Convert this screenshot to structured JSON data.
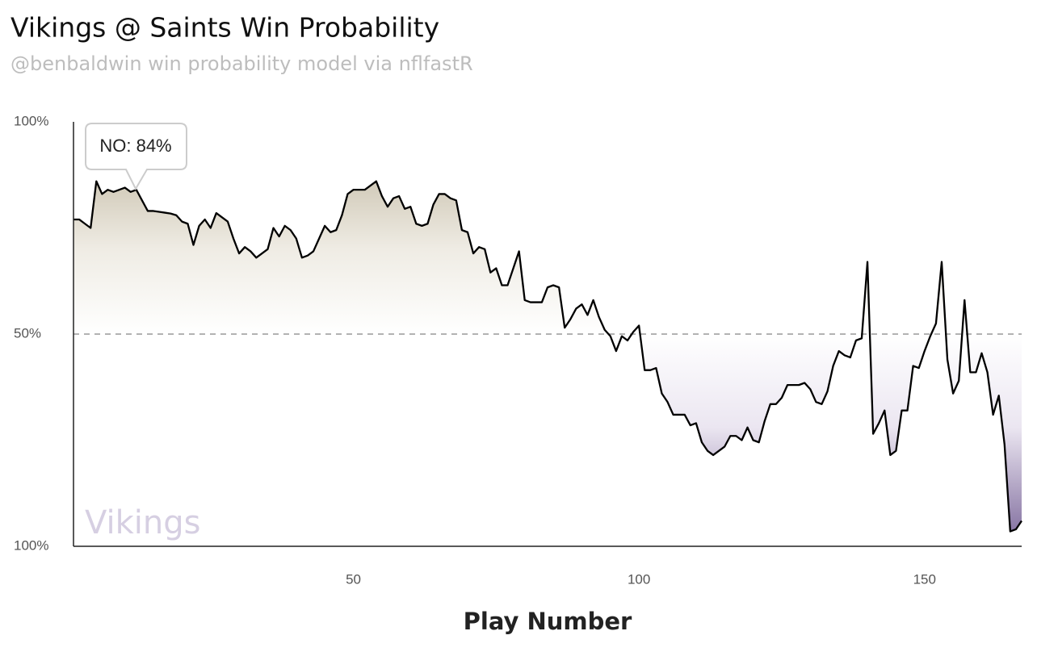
{
  "chart_data": {
    "type": "line",
    "title": "Vikings @ Saints Win Probability",
    "subtitle": "@benbaldwin win probability model via nflfastR",
    "xlabel": "Play Number",
    "annotation": "NO: 84%",
    "team_label": "Vikings",
    "x": [
      1,
      2,
      3,
      4,
      5,
      6,
      7,
      8,
      9,
      10,
      11,
      12,
      13,
      14,
      15,
      16,
      17,
      18,
      19,
      20,
      21,
      22,
      23,
      24,
      25,
      26,
      27,
      28,
      29,
      30,
      31,
      32,
      33,
      34,
      35,
      36,
      37,
      38,
      39,
      40,
      41,
      42,
      43,
      44,
      45,
      46,
      47,
      48,
      49,
      50,
      51,
      52,
      53,
      54,
      55,
      56,
      57,
      58,
      59,
      60,
      61,
      62,
      63,
      64,
      65,
      66,
      67,
      68,
      69,
      70,
      71,
      72,
      73,
      74,
      75,
      76,
      77,
      78,
      79,
      80,
      81,
      82,
      83,
      84,
      85,
      86,
      87,
      88,
      89,
      90,
      91,
      92,
      93,
      94,
      95,
      96,
      97,
      98,
      99,
      100,
      101,
      102,
      103,
      104,
      105,
      106,
      107,
      108,
      109,
      110,
      111,
      112,
      113,
      114,
      115,
      116,
      117,
      118,
      119,
      120,
      121,
      122,
      123,
      124,
      125,
      126,
      127,
      128,
      129,
      130,
      131,
      132,
      133,
      134,
      135,
      136,
      137,
      138,
      139,
      140,
      141,
      142,
      143,
      144,
      145,
      146,
      147,
      148,
      149,
      150,
      151,
      152,
      153,
      154,
      155,
      156,
      157,
      158,
      159,
      160,
      161,
      162,
      163,
      164,
      165,
      166,
      167
    ],
    "series": [
      {
        "name": "NO",
        "color": "#000000",
        "values": [
          77,
          77,
          76,
          75,
          86,
          83,
          84,
          83.5,
          84,
          84.5,
          83.5,
          84,
          81.5,
          79,
          79,
          78.8,
          78.6,
          78.4,
          78,
          76.5,
          76,
          71,
          75.5,
          77,
          75,
          78.5,
          77.5,
          76.5,
          72.5,
          69,
          70.5,
          69.5,
          68,
          69,
          70,
          75,
          73,
          75.5,
          74.5,
          72.5,
          68,
          68.5,
          69.5,
          72.5,
          75.5,
          74,
          74.5,
          78,
          83,
          84,
          84,
          84,
          85,
          86,
          82.5,
          80,
          82,
          82.5,
          79.5,
          80,
          76,
          75.5,
          76,
          80.5,
          83,
          83,
          82,
          81.5,
          74.5,
          74,
          69,
          70.5,
          70,
          64.5,
          65.5,
          61.5,
          61.5,
          65.5,
          69.5,
          58,
          57.5,
          57.5,
          57.5,
          61,
          61.5,
          61,
          51.5,
          53.5,
          56,
          57,
          54.5,
          58,
          54,
          51,
          49.5,
          46,
          49.5,
          48.5,
          50.5,
          52,
          41.5,
          41.5,
          42,
          36,
          34,
          31,
          31,
          31,
          28.5,
          29,
          24.5,
          22.5,
          21.5,
          22.5,
          23.5,
          26,
          26,
          25,
          28,
          25,
          24.5,
          29.5,
          33.5,
          33.5,
          35,
          38,
          38,
          38,
          38.5,
          37,
          34,
          33.5,
          36.5,
          42.5,
          46,
          45,
          44.5,
          48.5,
          49,
          67,
          26.5,
          29,
          32,
          21.5,
          22.5,
          32,
          32,
          42.5,
          42,
          46,
          49.5,
          52.5,
          67,
          44,
          36,
          39,
          58,
          41,
          41,
          45.5,
          41,
          31,
          35.5,
          24,
          3.5,
          4,
          6
        ]
      }
    ],
    "xlim": [
      1,
      167
    ],
    "ylim": [
      0,
      100
    ],
    "xticks": [
      50,
      100,
      150
    ],
    "yticks": [
      {
        "value": 0,
        "label": "100%"
      },
      {
        "value": 50,
        "label": "50%"
      },
      {
        "value": 100,
        "label": "100%"
      }
    ],
    "reference_line": 50
  }
}
